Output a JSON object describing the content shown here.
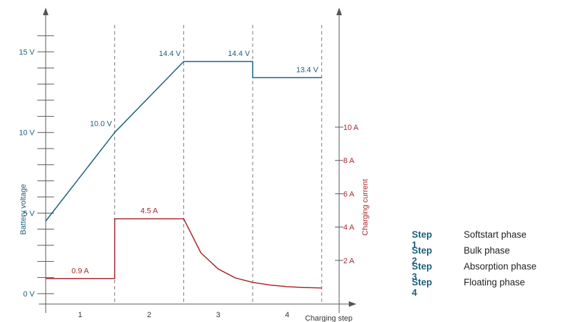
{
  "chart_data": {
    "type": "line",
    "x_axis": {
      "label": "Charging step",
      "tick_labels": [
        "1",
        "2",
        "3",
        "4"
      ],
      "range": [
        0,
        4
      ]
    },
    "y_axis_left": {
      "label": "Battery voltage",
      "unit": "V",
      "range": [
        0,
        16.5
      ],
      "tick_labels": [
        "0 V",
        "5 V",
        "10 V",
        "15 V"
      ],
      "tick_values": [
        0,
        5,
        10,
        15
      ],
      "minor_tick_step": 1
    },
    "y_axis_right": {
      "label": "Charging current",
      "unit": "A",
      "range": [
        0,
        11
      ],
      "tick_labels": [
        "2 A",
        "4 A",
        "6 A",
        "8 A",
        "10 A"
      ],
      "tick_values": [
        2,
        4,
        6,
        8,
        10
      ]
    },
    "step_dividers": [
      1,
      2,
      3,
      4
    ],
    "series": [
      {
        "key": "voltage",
        "axis": "left",
        "color": "#1b5e7e",
        "points": [
          [
            0,
            4.5
          ],
          [
            1,
            10.0
          ],
          [
            2,
            14.4
          ],
          [
            3,
            14.4
          ],
          [
            3,
            13.4
          ],
          [
            4,
            13.4
          ]
        ],
        "annotations": [
          {
            "x": 1,
            "y": 10.0,
            "text": "10.0 V"
          },
          {
            "x": 2,
            "y": 14.4,
            "text": "14.4 V"
          },
          {
            "x": 3,
            "y": 14.4,
            "text": "14.4 V"
          },
          {
            "x": 4,
            "y": 13.4,
            "text": "13.4 V"
          }
        ]
      },
      {
        "key": "current",
        "axis": "right",
        "color": "#a8252a",
        "points": [
          [
            0,
            0.9
          ],
          [
            1,
            0.9
          ],
          [
            1,
            4.5
          ],
          [
            2,
            4.5
          ],
          [
            2.25,
            2.45
          ],
          [
            2.5,
            1.48
          ],
          [
            2.75,
            0.94
          ],
          [
            3,
            0.68
          ],
          [
            3.25,
            0.52
          ],
          [
            3.5,
            0.42
          ],
          [
            3.75,
            0.37
          ],
          [
            4,
            0.34
          ]
        ],
        "annotations": [
          {
            "x": 0.5,
            "y": 0.9,
            "text": "0.9 A"
          },
          {
            "x": 1.5,
            "y": 4.5,
            "text": "4.5 A"
          }
        ]
      }
    ]
  },
  "legend": [
    {
      "step": "Step 1",
      "desc": "Softstart phase"
    },
    {
      "step": "Step 2",
      "desc": "Bulk phase"
    },
    {
      "step": "Step 3",
      "desc": "Absorption phase"
    },
    {
      "step": "Step 4",
      "desc": "Floating phase"
    }
  ]
}
